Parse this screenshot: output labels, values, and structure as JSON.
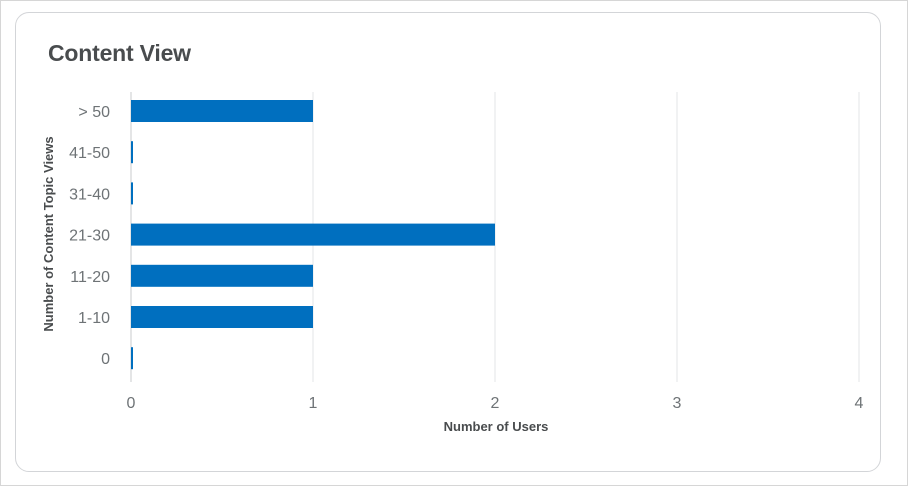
{
  "card": {
    "title": "Content View"
  },
  "chart_data": {
    "type": "bar",
    "orientation": "horizontal",
    "categories": [
      "> 50",
      "41-50",
      "31-40",
      "21-30",
      "11-20",
      "1-10",
      "0"
    ],
    "values": [
      1,
      0,
      0,
      2,
      1,
      1,
      0
    ],
    "xlabel": "Number of Users",
    "ylabel": "Number of Content Topic Views",
    "xlim": [
      0,
      4
    ],
    "xticks": [
      "0",
      "1",
      "2",
      "3",
      "4"
    ],
    "grid": "vertical",
    "legend": "none",
    "bar_color": "#006fbf"
  }
}
